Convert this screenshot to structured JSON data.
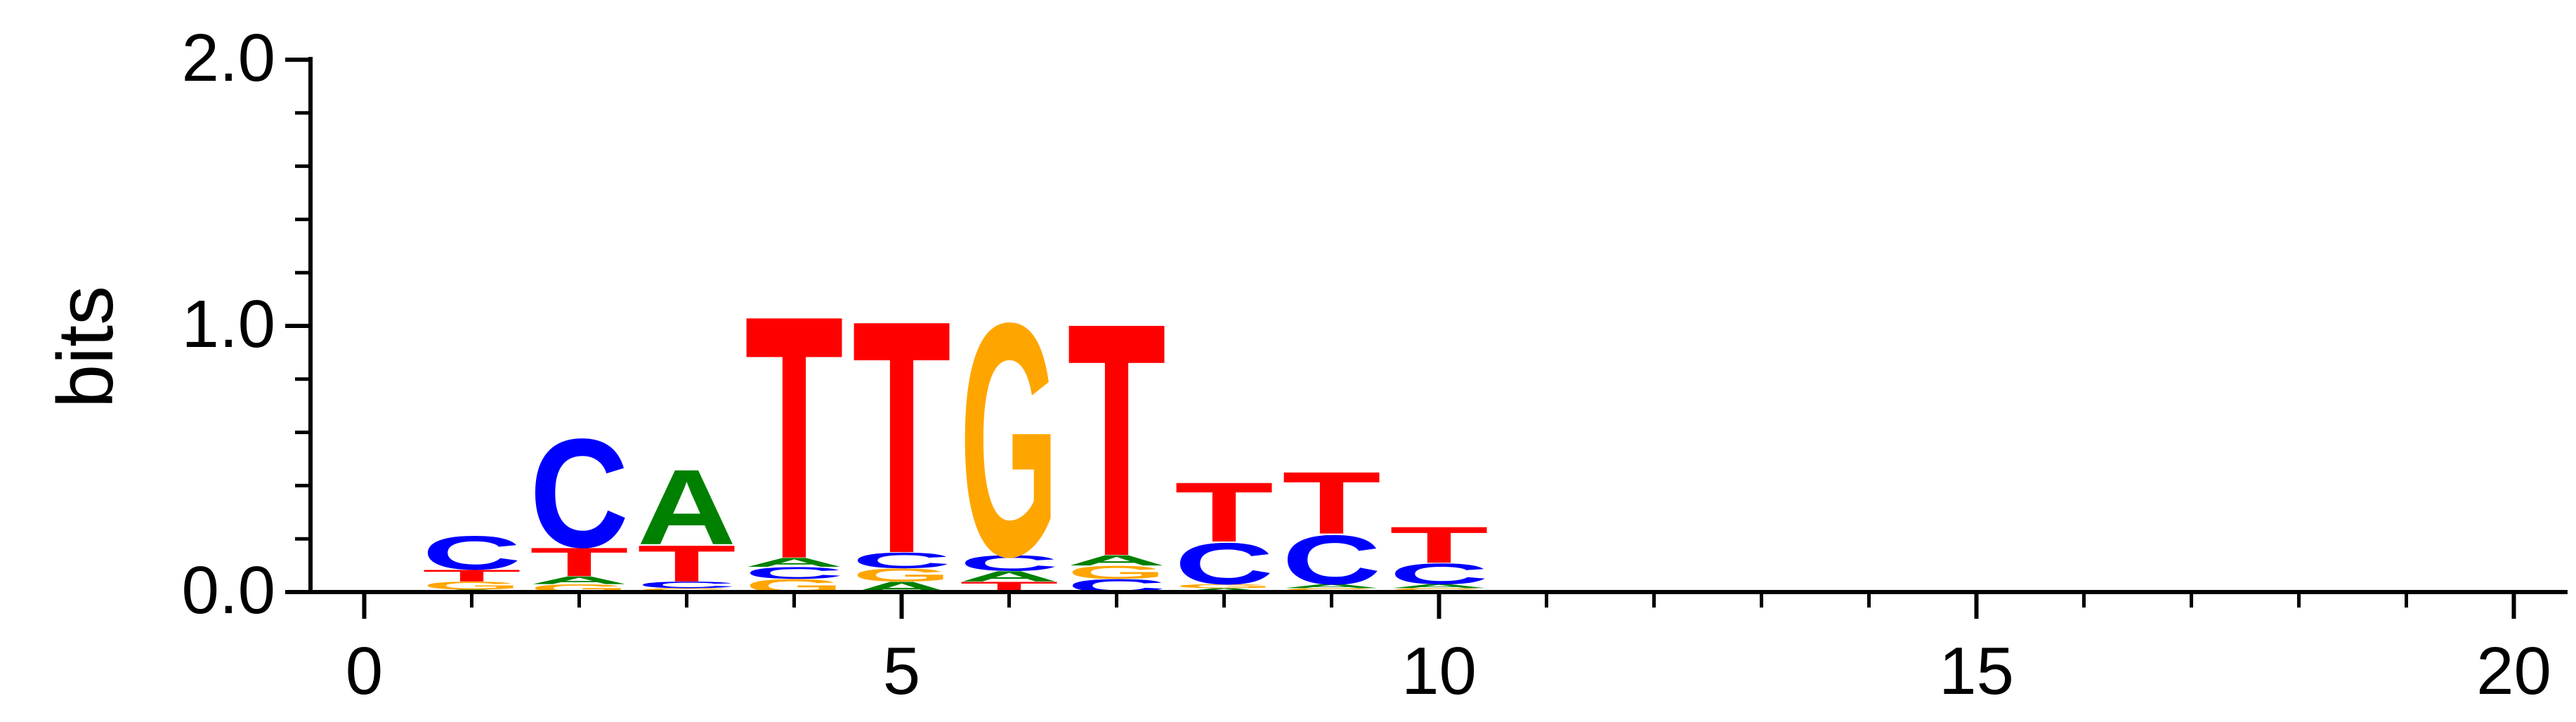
{
  "chart_data": {
    "type": "sequence-logo",
    "title": "",
    "xlabel": "",
    "ylabel": "bits",
    "xlim": [
      -0.5,
      20.5
    ],
    "ylim": [
      0,
      2.0
    ],
    "x_ticks": [
      0,
      5,
      10,
      15,
      20
    ],
    "x_tick_labels": [
      "0",
      "5",
      "10",
      "15",
      "20"
    ],
    "y_ticks": [
      0.0,
      1.0,
      2.0
    ],
    "y_tick_labels": [
      "0.0",
      "1.0",
      "2.0"
    ],
    "colors": {
      "A": "#008000",
      "C": "#0000ff",
      "G": "#ffa500",
      "T": "#ff0000"
    },
    "positions": [
      {
        "x": 1,
        "stack": [
          {
            "letter": "A",
            "height": 0.01
          },
          {
            "letter": "G",
            "height": 0.03
          },
          {
            "letter": "T",
            "height": 0.045
          },
          {
            "letter": "C",
            "height": 0.13
          }
        ]
      },
      {
        "x": 2,
        "stack": [
          {
            "letter": "G",
            "height": 0.03
          },
          {
            "letter": "A",
            "height": 0.03
          },
          {
            "letter": "T",
            "height": 0.11
          },
          {
            "letter": "C",
            "height": 0.42
          }
        ]
      },
      {
        "x": 3,
        "stack": [
          {
            "letter": "G",
            "height": 0.015
          },
          {
            "letter": "C",
            "height": 0.025
          },
          {
            "letter": "T",
            "height": 0.14
          },
          {
            "letter": "A",
            "height": 0.29
          }
        ]
      },
      {
        "x": 4,
        "stack": [
          {
            "letter": "G",
            "height": 0.05
          },
          {
            "letter": "C",
            "height": 0.045
          },
          {
            "letter": "A",
            "height": 0.035
          },
          {
            "letter": "T",
            "height": 0.94
          }
        ]
      },
      {
        "x": 5,
        "stack": [
          {
            "letter": "A",
            "height": 0.04
          },
          {
            "letter": "G",
            "height": 0.05
          },
          {
            "letter": "C",
            "height": 0.06
          },
          {
            "letter": "T",
            "height": 0.9
          }
        ]
      },
      {
        "x": 6,
        "stack": [
          {
            "letter": "T",
            "height": 0.04
          },
          {
            "letter": "A",
            "height": 0.04
          },
          {
            "letter": "C",
            "height": 0.06
          },
          {
            "letter": "G",
            "height": 0.9
          }
        ]
      },
      {
        "x": 7,
        "stack": [
          {
            "letter": "C",
            "height": 0.05
          },
          {
            "letter": "G",
            "height": 0.05
          },
          {
            "letter": "A",
            "height": 0.04
          },
          {
            "letter": "T",
            "height": 0.9
          }
        ]
      },
      {
        "x": 8,
        "stack": [
          {
            "letter": "A",
            "height": 0.015
          },
          {
            "letter": "G",
            "height": 0.015
          },
          {
            "letter": "C",
            "height": 0.16
          },
          {
            "letter": "T",
            "height": 0.23
          }
        ]
      },
      {
        "x": 9,
        "stack": [
          {
            "letter": "G",
            "height": 0.015
          },
          {
            "letter": "A",
            "height": 0.015
          },
          {
            "letter": "C",
            "height": 0.19
          },
          {
            "letter": "T",
            "height": 0.24
          }
        ]
      },
      {
        "x": 10,
        "stack": [
          {
            "letter": "G",
            "height": 0.015
          },
          {
            "letter": "A",
            "height": 0.015
          },
          {
            "letter": "C",
            "height": 0.08
          },
          {
            "letter": "T",
            "height": 0.14
          }
        ]
      }
    ]
  }
}
